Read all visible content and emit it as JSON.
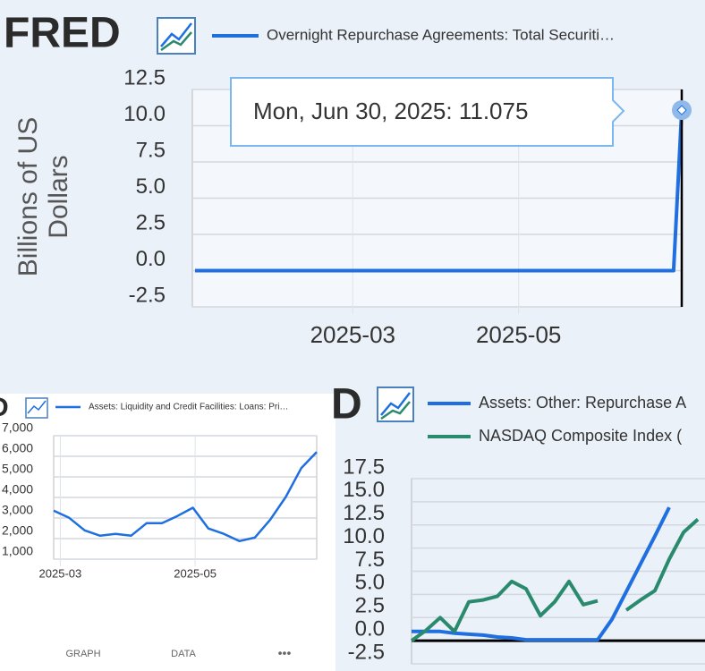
{
  "logos": [
    "FRED",
    "D",
    "D"
  ],
  "tabs": [
    "GRAPH",
    "DATA",
    "•••"
  ],
  "chart_data": [
    {
      "type": "line",
      "y_label": "Billions of US Dollars",
      "tooltip": "Mon, Jun 30, 2025:  11.075",
      "grid": true,
      "series": [
        {
          "name": "Overnight Repurchase Agreements: Total Securiti…",
          "color": "#1f6fe0",
          "values": [
            0,
            0,
            0,
            0,
            0,
            0,
            0,
            0,
            0,
            0,
            0,
            0,
            0,
            0,
            0,
            0,
            0,
            0,
            0,
            0,
            0,
            0,
            0,
            0,
            0,
            0,
            0,
            11.075
          ]
        }
      ],
      "x": [
        "2025-01-02",
        "2025-01-09",
        "2025-01-16",
        "2025-01-23",
        "2025-01-30",
        "2025-02-06",
        "2025-02-13",
        "2025-02-20",
        "2025-02-27",
        "2025-03-06",
        "2025-03-13",
        "2025-03-20",
        "2025-03-27",
        "2025-04-03",
        "2025-04-10",
        "2025-04-17",
        "2025-04-24",
        "2025-05-01",
        "2025-05-08",
        "2025-05-15",
        "2025-05-22",
        "2025-05-29",
        "2025-06-05",
        "2025-06-12",
        "2025-06-19",
        "2025-06-26",
        "2025-06-27",
        "2025-06-30"
      ],
      "xlim": [
        "2025-01-01",
        "2025-06-30"
      ],
      "xticks": [
        {
          "value": "2025-03-01",
          "label": "2025-03"
        },
        {
          "value": "2025-05-01",
          "label": "2025-05"
        }
      ],
      "ylim": [
        -2.5,
        12.5
      ],
      "yticks": [
        -2.5,
        {
          "value": 0,
          "label": "0.0"
        },
        2.5,
        {
          "value": 5,
          "label": "5.0"
        },
        7.5,
        {
          "value": 10,
          "label": "10.0"
        },
        12.5
      ]
    },
    {
      "type": "line",
      "grid": true,
      "series": [
        {
          "name": "Assets: Liquidity and Credit Facilities: Loans: Pri…",
          "color": "#1f6fe0",
          "values": [
            3360,
            3010,
            2400,
            2140,
            2230,
            2140,
            2750,
            2750,
            3100,
            3500,
            2490,
            2230,
            1880,
            2050,
            2920,
            4020,
            5420,
            6210
          ]
        }
      ],
      "x": [
        "2025-02-26",
        "2025-03-05",
        "2025-03-12",
        "2025-03-19",
        "2025-03-26",
        "2025-04-02",
        "2025-04-09",
        "2025-04-16",
        "2025-04-23",
        "2025-04-30",
        "2025-05-07",
        "2025-05-14",
        "2025-05-21",
        "2025-05-28",
        "2025-06-04",
        "2025-06-11",
        "2025-06-18",
        "2025-06-25"
      ],
      "xlim": [
        "2025-02-26",
        "2025-06-25"
      ],
      "xticks": [
        {
          "value": "2025-03-01",
          "label": "2025-03"
        },
        {
          "value": "2025-05-01",
          "label": "2025-05"
        }
      ],
      "ylim": [
        1000,
        7000
      ],
      "yticks": [
        {
          "value": 1000,
          "label": "1,000"
        },
        {
          "value": 2000,
          "label": "2,000"
        },
        {
          "value": 3000,
          "label": "3,000"
        },
        {
          "value": 4000,
          "label": "4,000"
        },
        {
          "value": 5000,
          "label": "5,000"
        },
        {
          "value": 6000,
          "label": "6,000"
        },
        {
          "value": 7000,
          "label": "7,000"
        }
      ]
    },
    {
      "type": "line",
      "grid": true,
      "categories": [
        null,
        null,
        null,
        null,
        null,
        null,
        null,
        null,
        null,
        null,
        null,
        null,
        null,
        null,
        null,
        null,
        null,
        null,
        null,
        null,
        null
      ],
      "series": [
        {
          "name": "Assets: Other: Repurchase A",
          "color": "#1f6fe0",
          "values": [
            1.0,
            1.0,
            1.0,
            0.8,
            0.7,
            0.6,
            0.4,
            0.3,
            0.1,
            0.1,
            0.1,
            0.1,
            0.1,
            0.1,
            2.3,
            5.3,
            8.3,
            11.3,
            14.4,
            null,
            null
          ]
        },
        {
          "name": "NASDAQ Composite Index (",
          "color": "#2a8a6e",
          "values": [
            0,
            1.1,
            2.5,
            1.0,
            4.2,
            4.4,
            4.8,
            6.4,
            5.6,
            2.7,
            4.2,
            6.4,
            3.9,
            4.3,
            null,
            3.3,
            4.4,
            5.4,
            8.8,
            11.7,
            13.1
          ]
        }
      ],
      "ylim": [
        -2.5,
        17.5
      ],
      "yticks": [
        -2.5,
        {
          "value": 0,
          "label": "0.0"
        },
        2.5,
        {
          "value": 5,
          "label": "5.0"
        },
        7.5,
        {
          "value": 10,
          "label": "10.0"
        },
        12.5,
        {
          "value": 15,
          "label": "15.0"
        },
        17.5
      ]
    }
  ]
}
